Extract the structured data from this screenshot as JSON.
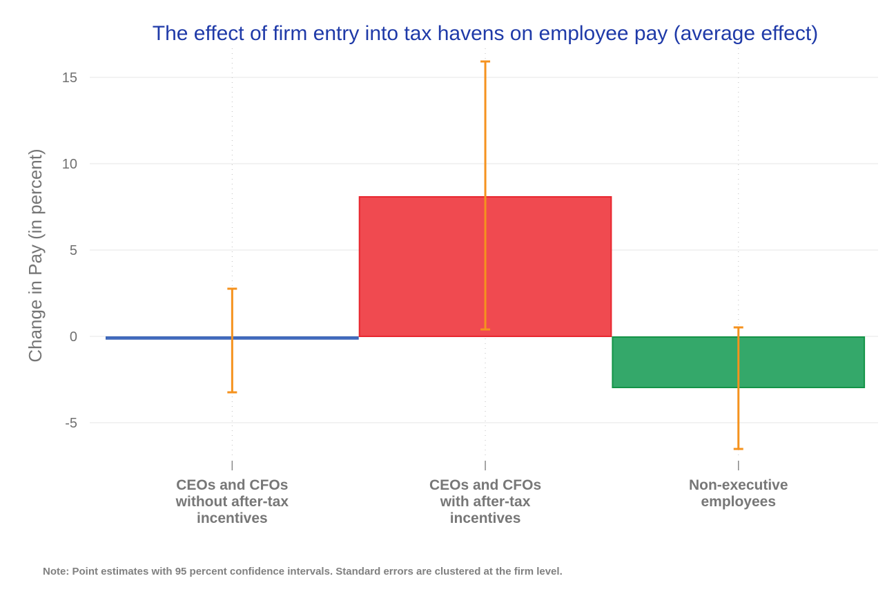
{
  "chart_data": {
    "type": "bar",
    "title": "The effect of firm entry into tax havens on employee pay (average effect)",
    "ylabel": "Change in Pay (in percent)",
    "xlabel": "",
    "ylim": [
      -8,
      17
    ],
    "yticks": [
      15,
      10,
      5,
      0,
      -5
    ],
    "ytick_labels": [
      "15",
      "10",
      "5",
      "0",
      "-5"
    ],
    "grid": true,
    "categories": [
      [
        "CEOs and CFOs",
        "without after-tax",
        "incentives"
      ],
      [
        "CEOs and CFOs",
        "with after-tax",
        "incentives"
      ],
      [
        "Non-executive",
        "employees"
      ]
    ],
    "values": [
      -0.15,
      8.12,
      -2.96
    ],
    "ci_low": [
      -3.24,
      0.4,
      -6.52
    ],
    "ci_high": [
      2.76,
      15.92,
      0.52
    ],
    "colors": {
      "bars": [
        "#4a76c9",
        "#f04a50",
        "#34a86a"
      ],
      "bar_borders": [
        "#3d66b8",
        "#e8262e",
        "#139447"
      ],
      "error_bars": "#f5921e",
      "title": "#1f3aa8"
    },
    "note": "Note: Point estimates with 95 percent confidence intervals. Standard errors are clustered at the firm level."
  }
}
